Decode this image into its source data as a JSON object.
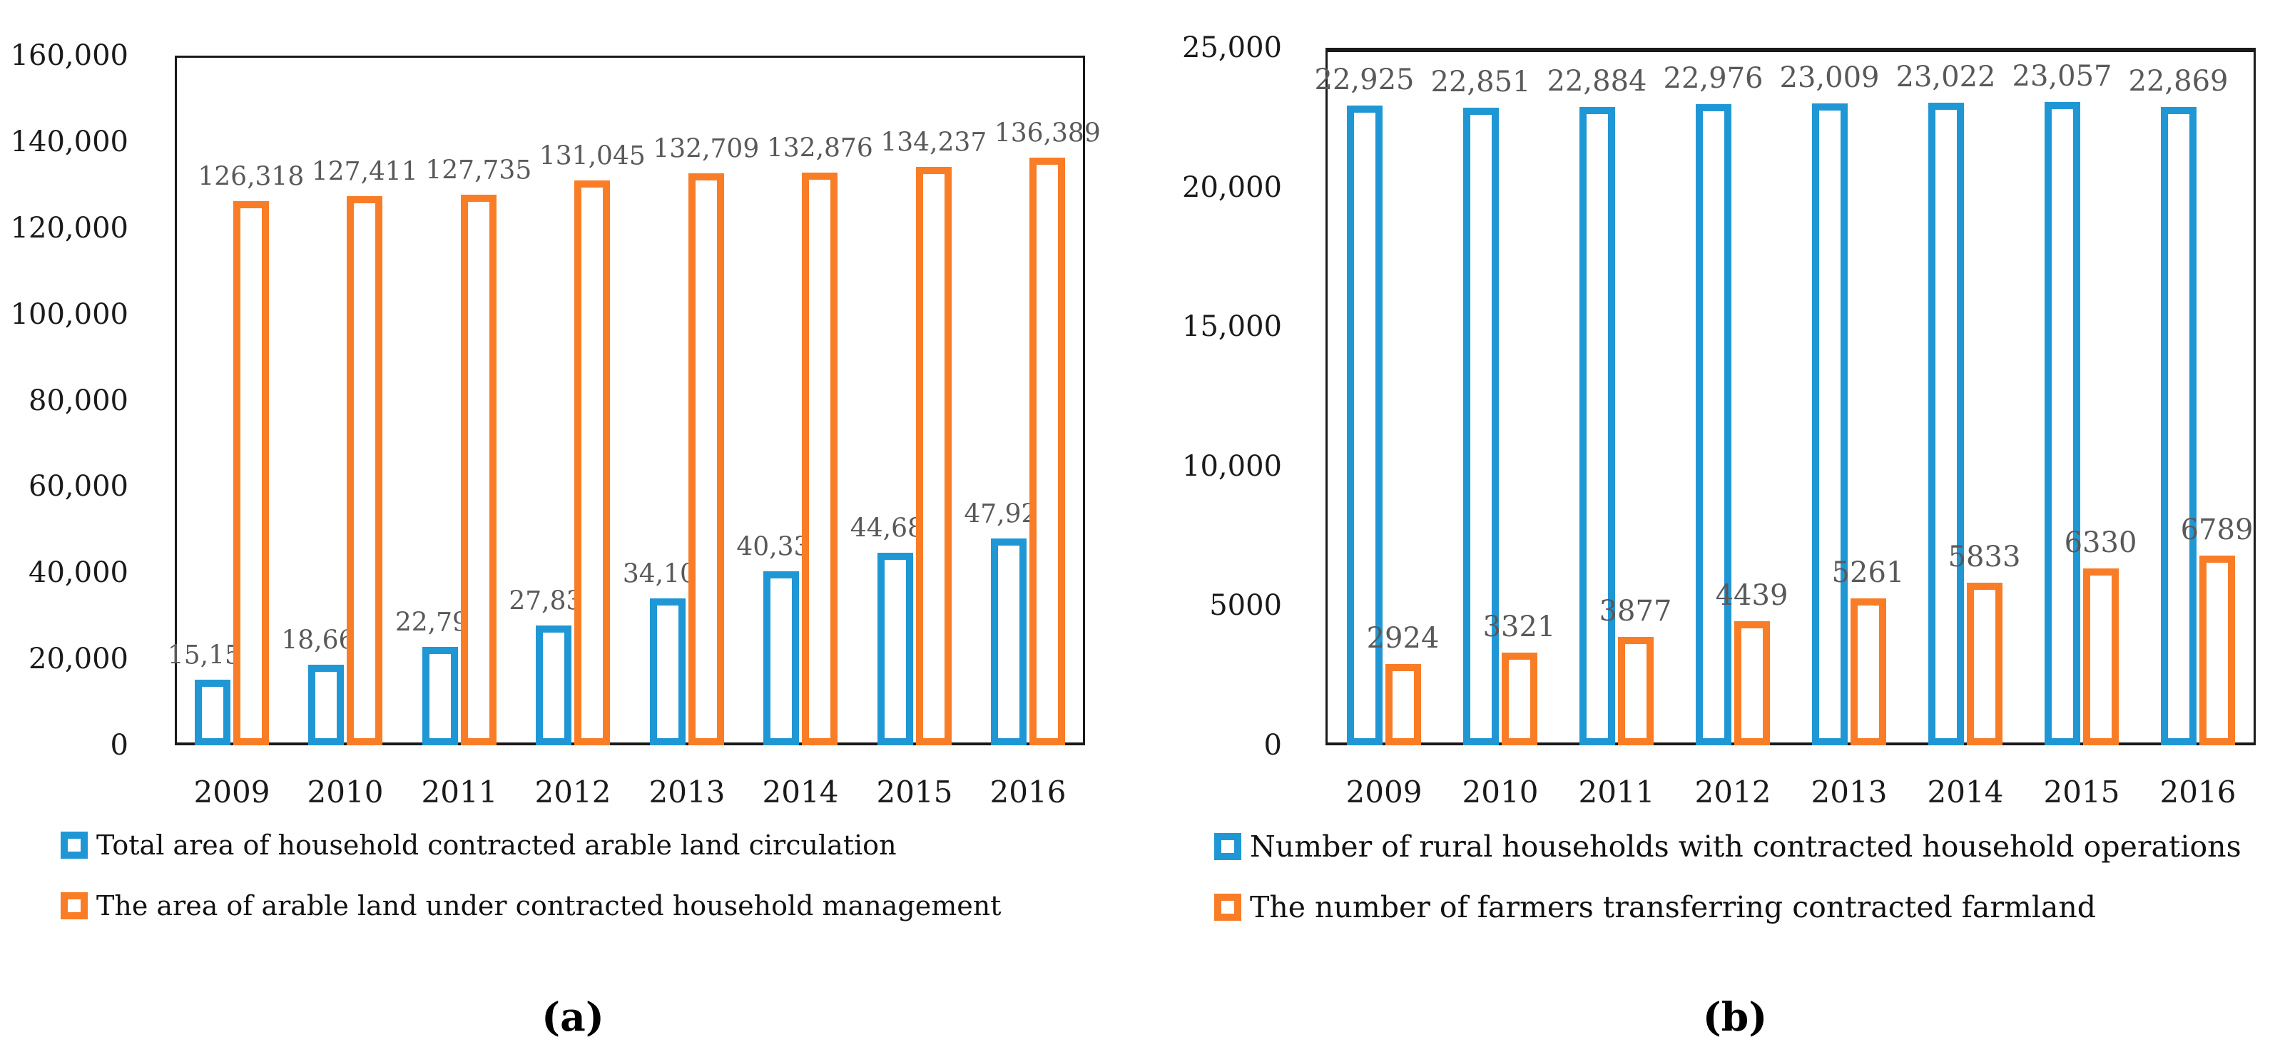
{
  "colors": {
    "blue": "#2097D5",
    "orange": "#F97D26",
    "data_label": "#595959",
    "axis": "#1a1a1a"
  },
  "chart_data": [
    {
      "type": "bar",
      "panel": "a",
      "caption": "(a)",
      "title": "",
      "xlabel": "",
      "ylabel": "",
      "grid": false,
      "legend_position": "bottom-left",
      "ylim": [
        0,
        160000
      ],
      "y_ticks": [
        "160,000",
        "140,000",
        "120,000",
        "100,000",
        "80,000",
        "60,000",
        "40,000",
        "20,000",
        "0"
      ],
      "categories": [
        "2009",
        "2010",
        "2011",
        "2012",
        "2013",
        "2014",
        "2015",
        "2016"
      ],
      "series": [
        {
          "name": "Total area of household contracted arable land circulation",
          "color_key": "blue",
          "values": [
            15154,
            18668,
            22793,
            27833,
            34102,
            40339,
            44683,
            47921
          ],
          "labels": [
            "15,154",
            "18,668",
            "22,793",
            "27,833",
            "34,102",
            "40,339",
            "44,683",
            "47,921"
          ]
        },
        {
          "name": "The area of arable land under contracted household management",
          "color_key": "orange",
          "values": [
            126318,
            127411,
            127735,
            131045,
            132709,
            132876,
            134237,
            136389
          ],
          "labels": [
            "126,318",
            "127,411",
            "127,735",
            "131,045",
            "132,709",
            "132,876",
            "134,237",
            "136,389"
          ]
        }
      ]
    },
    {
      "type": "bar",
      "panel": "b",
      "caption": "(b)",
      "title": "",
      "xlabel": "",
      "ylabel": "",
      "grid": false,
      "legend_position": "bottom-left",
      "ylim": [
        0,
        25000
      ],
      "y_ticks": [
        "25,000",
        "20,000",
        "15,000",
        "10,000",
        "5000",
        "0"
      ],
      "categories": [
        "2009",
        "2010",
        "2011",
        "2012",
        "2013",
        "2014",
        "2015",
        "2016"
      ],
      "series": [
        {
          "name": "Number of rural households with contracted household operations",
          "color_key": "blue",
          "values": [
            22925,
            22851,
            22884,
            22976,
            23009,
            23022,
            23057,
            22869
          ],
          "labels": [
            "22,925",
            "22,851",
            "22,884",
            "22,976",
            "23,009",
            "23,022",
            "23,057",
            "22,869"
          ]
        },
        {
          "name": "The number of farmers transferring contracted farmland",
          "color_key": "orange",
          "values": [
            2924,
            3321,
            3877,
            4439,
            5261,
            5833,
            6330,
            6789
          ],
          "labels": [
            "2924",
            "3321",
            "3877",
            "4439",
            "5261",
            "5833",
            "6330",
            "6789"
          ]
        }
      ]
    }
  ]
}
